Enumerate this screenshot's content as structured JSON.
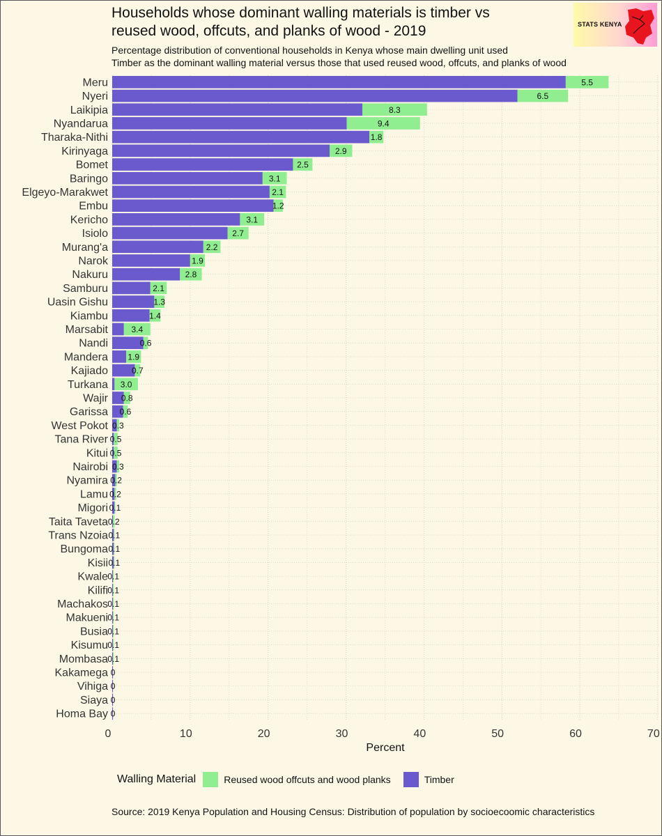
{
  "header": {
    "title_line1": "Households whose dominant walling materials is timber vs",
    "title_line2": "reused wood, offcuts, and planks of wood - 2019",
    "subtitle_line1": "Percentage distribution of conventional households in Kenya whose main dwelling unit used",
    "subtitle_line2": "Timber as the dominant walling material versus those that used reused wood, offcuts, and planks of wood"
  },
  "logo": {
    "text": "STATS KENYA",
    "map_color": "#e8141e"
  },
  "legend": {
    "title": "Walling Material",
    "items": [
      {
        "label": "Reused wood offcuts and wood planks",
        "color": "#90ee90"
      },
      {
        "label": "Timber",
        "color": "#6a5acd"
      }
    ]
  },
  "source": "Source: 2019 Kenya Population and Housing Census: Distribution of population by socioecoomic characteristics",
  "chart_data": {
    "type": "bar",
    "orientation": "horizontal",
    "stacked": true,
    "xlabel": "Percent",
    "ylabel": "",
    "xlim": [
      0,
      70
    ],
    "xticks": [
      0,
      10,
      20,
      30,
      40,
      50,
      60,
      70
    ],
    "grid": true,
    "legend_position": "bottom",
    "categories": [
      "Meru",
      "Nyeri",
      "Laikipia",
      "Nyandarua",
      "Tharaka-Nithi",
      "Kirinyaga",
      "Bomet",
      "Baringo",
      "Elgeyo-Marakwet",
      "Embu",
      "Kericho",
      "Isiolo",
      "Murang'a",
      "Narok",
      "Nakuru",
      "Samburu",
      "Uasin Gishu",
      "Kiambu",
      "Marsabit",
      "Nandi",
      "Mandera",
      "Kajiado",
      "Turkana",
      "Wajir",
      "Garissa",
      "West Pokot",
      "Tana River",
      "Kitui",
      "Nairobi",
      "Nyamira",
      "Lamu",
      "Migori",
      "Taita Taveta",
      "Trans Nzoia",
      "Bungoma",
      "Kisii",
      "Kwale",
      "Kilifi",
      "Machakos",
      "Makueni",
      "Busia",
      "Kisumu",
      "Mombasa",
      "Kakamega",
      "Vihiga",
      "Siaya",
      "Homa Bay"
    ],
    "series": [
      {
        "name": "Timber",
        "color": "#6a5acd",
        "values": [
          58.2,
          52.0,
          32.1,
          30.1,
          33.0,
          27.9,
          23.2,
          19.3,
          20.2,
          20.7,
          16.4,
          14.8,
          11.7,
          10.0,
          8.7,
          4.9,
          5.4,
          4.8,
          1.5,
          4.0,
          1.8,
          2.9,
          0.3,
          1.5,
          1.4,
          0.6,
          0.2,
          0.2,
          0.6,
          0.4,
          0.3,
          0.3,
          0.1,
          0.2,
          0.2,
          0.2,
          0.1,
          0.1,
          0.1,
          0.1,
          0.1,
          0.1,
          0.1,
          0.1,
          0.1,
          0.1,
          0.1
        ]
      },
      {
        "name": "Reused wood offcuts and wood planks",
        "color": "#90ee90",
        "values": [
          5.5,
          6.5,
          8.3,
          9.4,
          1.8,
          2.9,
          2.5,
          3.1,
          2.1,
          1.2,
          3.1,
          2.7,
          2.2,
          1.9,
          2.8,
          2.1,
          1.3,
          1.4,
          3.4,
          0.6,
          1.9,
          0.7,
          3.0,
          0.8,
          0.6,
          0.3,
          0.5,
          0.5,
          0.3,
          0.2,
          0.2,
          0.1,
          0.2,
          0.1,
          0.1,
          0.1,
          0.1,
          0.1,
          0.1,
          0.1,
          0.1,
          0.1,
          0.1,
          0,
          0,
          0,
          0
        ]
      }
    ],
    "data_labels": [
      "5.5",
      "6.5",
      "8.3",
      "9.4",
      "1.8",
      "2.9",
      "2.5",
      "3.1",
      "2.1",
      "1.2",
      "3.1",
      "2.7",
      "2.2",
      "1.9",
      "2.8",
      "2.1",
      "1.3",
      "1.4",
      "3.4",
      "0.6",
      "1.9",
      "0.7",
      "3.0",
      "0.8",
      "0.6",
      "0.3",
      "0.5",
      "0.5",
      "0.3",
      "0.2",
      "0.2",
      "0.1",
      "0.2",
      "0.1",
      "0.1",
      "0.1",
      "0.1",
      "0.1",
      "0.1",
      "0.1",
      "0.1",
      "0.1",
      "0.1",
      "0",
      "0",
      "0",
      "0"
    ]
  }
}
